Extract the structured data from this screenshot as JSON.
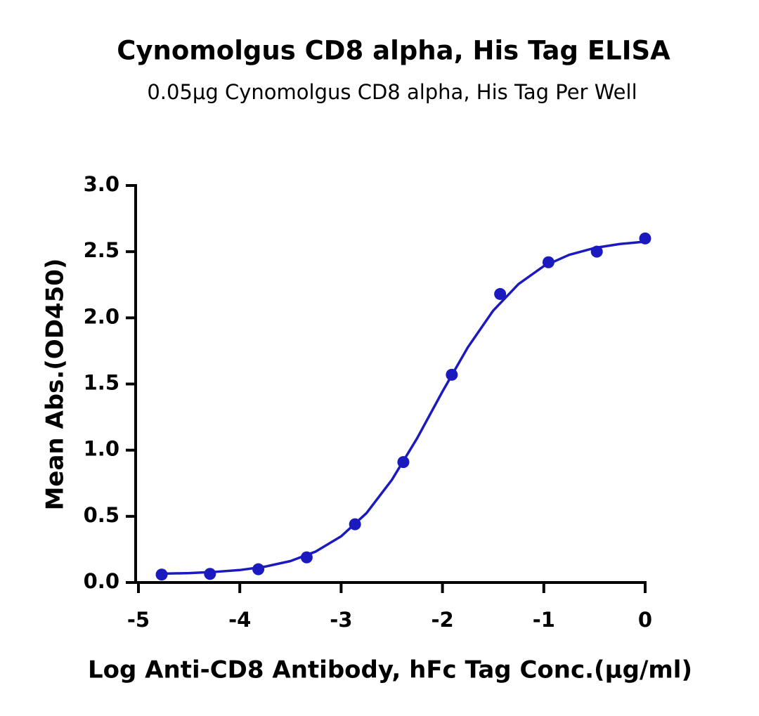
{
  "chart_data": {
    "type": "scatter",
    "title": "Cynomolgus CD8 alpha, His Tag ELISA",
    "subtitle": "0.05μg Cynomolgus CD8 alpha, His Tag Per Well",
    "x_label": "Log Anti-CD8 Antibody, hFc Tag Conc.(μg/ml)",
    "y_label": "Mean Abs.(OD450)",
    "xlim": [
      -5,
      0
    ],
    "xticks": [
      -5,
      -4,
      -3,
      -2,
      -1,
      0
    ],
    "ylim": [
      0,
      3
    ],
    "yticks": [
      {
        "value": 0,
        "label": "0.0"
      },
      0.5,
      {
        "value": 1,
        "label": "1.0"
      },
      1.5,
      {
        "value": 2,
        "label": "2.0"
      },
      2.5,
      {
        "value": 3,
        "label": "3.0"
      }
    ],
    "series": [
      {
        "type": "scatter",
        "color": "#1a1abf",
        "x": [
          -4.771,
          -4.294,
          -3.817,
          -3.34,
          -2.863,
          -2.386,
          -1.908,
          -1.431,
          -0.954,
          -0.477,
          0
        ],
        "values": [
          0.06,
          0.065,
          0.1,
          0.19,
          0.44,
          0.91,
          1.57,
          2.18,
          2.42,
          2.5,
          2.6
        ]
      },
      {
        "type": "line",
        "color": "#1a1abf",
        "x": [
          -4.75,
          -4.5,
          -4.25,
          -4.0,
          -3.75,
          -3.5,
          -3.25,
          -3.0,
          -2.75,
          -2.5,
          -2.25,
          -2.0,
          -1.75,
          -1.5,
          -1.25,
          -1.0,
          -0.75,
          -0.5,
          -0.25,
          0
        ],
        "values": [
          0.067,
          0.071,
          0.08,
          0.094,
          0.12,
          0.162,
          0.234,
          0.349,
          0.524,
          0.775,
          1.09,
          1.443,
          1.777,
          2.054,
          2.255,
          2.391,
          2.476,
          2.528,
          2.558,
          2.576
        ]
      }
    ]
  }
}
